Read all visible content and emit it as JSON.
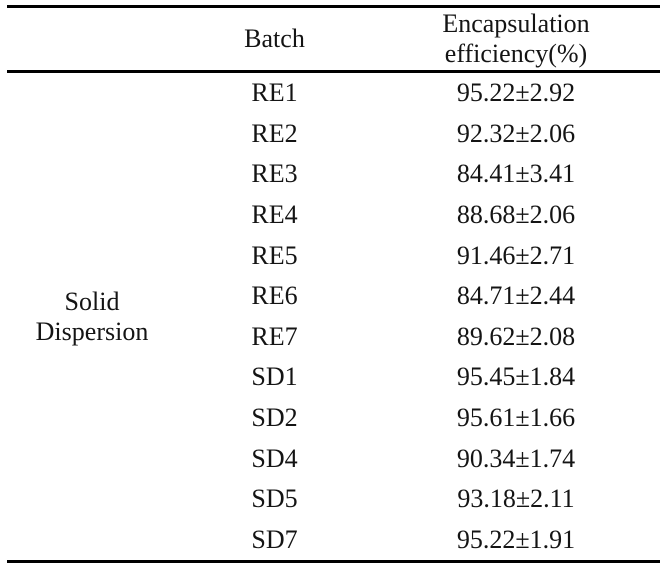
{
  "table": {
    "headers": {
      "group": "",
      "batch": "Batch",
      "efficiency": "Encapsulation\nefficiency(%)"
    },
    "group_label": "Solid\nDispersion",
    "rows": [
      {
        "batch": "RE1",
        "efficiency": "95.22±2.92"
      },
      {
        "batch": "RE2",
        "efficiency": "92.32±2.06"
      },
      {
        "batch": "RE3",
        "efficiency": "84.41±3.41"
      },
      {
        "batch": "RE4",
        "efficiency": "88.68±2.06"
      },
      {
        "batch": "RE5",
        "efficiency": "91.46±2.71"
      },
      {
        "batch": "RE6",
        "efficiency": "84.71±2.44"
      },
      {
        "batch": "RE7",
        "efficiency": "89.62±2.08"
      },
      {
        "batch": "SD1",
        "efficiency": "95.45±1.84"
      },
      {
        "batch": "SD2",
        "efficiency": "95.61±1.66"
      },
      {
        "batch": "SD4",
        "efficiency": "90.34±1.74"
      },
      {
        "batch": "SD5",
        "efficiency": "93.18±2.11"
      },
      {
        "batch": "SD7",
        "efficiency": "95.22±1.91"
      }
    ],
    "colors": {
      "text": "#141414",
      "rule": "#000000",
      "background": "#ffffff"
    }
  }
}
